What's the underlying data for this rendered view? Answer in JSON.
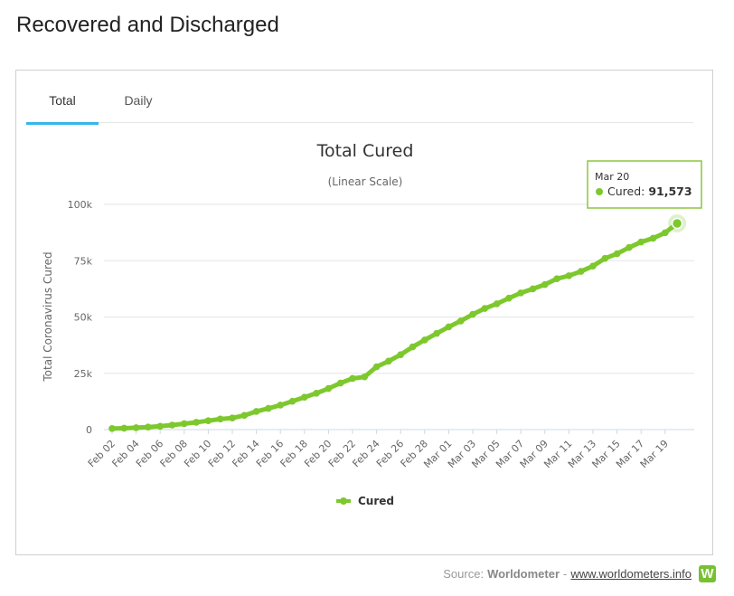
{
  "page": {
    "title": "Recovered and Discharged"
  },
  "tabs": [
    {
      "label": "Total",
      "active": true
    },
    {
      "label": "Daily",
      "active": false
    }
  ],
  "source": {
    "prefix": "Source:",
    "name": "Worldometer",
    "separator": "-",
    "link": "www.worldometers.info",
    "logo_letter": "W"
  },
  "colors": {
    "series": "#7dc82d",
    "tab_active": "#34b6ea",
    "logo": "#77c131"
  },
  "chart_data": {
    "type": "line",
    "title": "Total Cured",
    "subtitle": "(Linear Scale)",
    "xlabel": "",
    "ylabel": "Total Coronavirus Cured",
    "scale": "linear",
    "grid": true,
    "legend": "bottom-center",
    "ylim": [
      0,
      100000
    ],
    "y_ticks": [
      "0",
      "25k",
      "50k",
      "75k",
      "100k"
    ],
    "x_tick_labels": [
      "Feb 02",
      "Feb 04",
      "Feb 06",
      "Feb 08",
      "Feb 10",
      "Feb 12",
      "Feb 14",
      "Feb 16",
      "Feb 18",
      "Feb 20",
      "Feb 22",
      "Feb 24",
      "Feb 26",
      "Feb 28",
      "Mar 01",
      "Mar 03",
      "Mar 05",
      "Mar 07",
      "Mar 09",
      "Mar 11",
      "Mar 13",
      "Mar 15",
      "Mar 17",
      "Mar 19"
    ],
    "x": [
      "Feb 02",
      "Feb 03",
      "Feb 04",
      "Feb 05",
      "Feb 06",
      "Feb 07",
      "Feb 08",
      "Feb 09",
      "Feb 10",
      "Feb 11",
      "Feb 12",
      "Feb 13",
      "Feb 14",
      "Feb 15",
      "Feb 16",
      "Feb 17",
      "Feb 18",
      "Feb 19",
      "Feb 20",
      "Feb 21",
      "Feb 22",
      "Feb 23",
      "Feb 24",
      "Feb 25",
      "Feb 26",
      "Feb 27",
      "Feb 28",
      "Feb 29",
      "Mar 01",
      "Mar 02",
      "Mar 03",
      "Mar 04",
      "Mar 05",
      "Mar 06",
      "Mar 07",
      "Mar 08",
      "Mar 09",
      "Mar 10",
      "Mar 11",
      "Mar 12",
      "Mar 13",
      "Mar 14",
      "Mar 15",
      "Mar 16",
      "Mar 17",
      "Mar 18",
      "Mar 19",
      "Mar 20"
    ],
    "series": [
      {
        "name": "Cured",
        "values": [
          472,
          623,
          852,
          1124,
          1487,
          2011,
          2616,
          3244,
          3946,
          4683,
          5150,
          6295,
          8058,
          9395,
          10865,
          12583,
          14376,
          16155,
          18264,
          20659,
          22699,
          23394,
          27905,
          30384,
          33277,
          36711,
          39782,
          42716,
          45602,
          48228,
          51171,
          53796,
          55866,
          58351,
          60695,
          62494,
          64404,
          67003,
          68324,
          70251,
          72624,
          76034,
          78088,
          80840,
          83312,
          84962,
          87403,
          91573
        ]
      }
    ],
    "tooltip": {
      "date": "Mar 20",
      "series": "Cured",
      "value": "91,573"
    }
  }
}
